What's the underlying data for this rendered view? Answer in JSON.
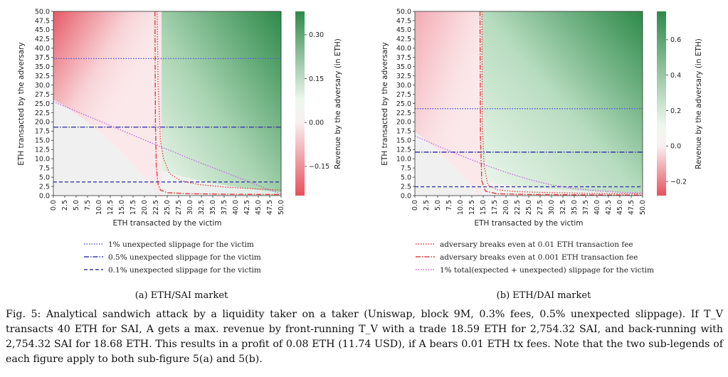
{
  "caption": "Fig. 5: Analytical sandwich attack by a liquidity taker on a taker (Uniswap, block 9M, 0.3% fees, 0.5% unexpected slippage). If T_V transacts 40 ETH for SAI, A gets a max. revenue by front-running T_V with a trade 18.59 ETH for 2,754.32 SAI, and back-running with 2,754.32 SAI for 18.68 ETH. This results in a profit of 0.08 ETH (11.74 USD), if A bears 0.01 ETH tx fees. Note that the two sub-legends of each figure apply to both sub-figure 5(a) and 5(b).",
  "legend_a": [
    {
      "label": "1% unexpected slippage for the victim",
      "color": "#5a5ad8",
      "dash": "dotted"
    },
    {
      "label": "0.5% unexpected slippage for the victim",
      "color": "#3a3aa8",
      "dash": "dashdot"
    },
    {
      "label": "0.1% unexpected slippage for the victim",
      "color": "#3a3aa8",
      "dash": "dashed"
    }
  ],
  "legend_b": [
    {
      "label": "adversary breaks even at 0.01 ETH transaction fee",
      "color": "#e04040",
      "dash": "dotted"
    },
    {
      "label": "adversary breaks even at 0.001 ETH transaction fee",
      "color": "#e04040",
      "dash": "dashdot"
    },
    {
      "label": "1% total(expected + unexpected) slippage for the victim",
      "color": "#c060e0",
      "dash": "dotted"
    }
  ],
  "chart_data": [
    {
      "type": "heatmap",
      "title": "(a) ETH/SAI market",
      "xlabel": "ETH transacted by the victim",
      "ylabel": "ETH transacted by the adversary",
      "colorbar_label": "Revenue by the adversary (in ETH)",
      "xlim": [
        0,
        50
      ],
      "ylim": [
        0,
        50
      ],
      "xticks": [
        0,
        2.5,
        5,
        7.5,
        10,
        12.5,
        15,
        17.5,
        20,
        22.5,
        25,
        27.5,
        30,
        32.5,
        35,
        37.5,
        40,
        42.5,
        45,
        47.5,
        50
      ],
      "xtick_labels": [
        "0.0",
        "2.5",
        "5.0",
        "7.5",
        "10.0",
        "12.5",
        "15.0",
        "17.5",
        "20.0",
        "22.5",
        "25.0",
        "27.5",
        "30.0",
        "32.5",
        "35.0",
        "37.5",
        "40.0",
        "42.5",
        "45.0",
        "47.5",
        "50.0"
      ],
      "yticks": [
        0,
        2.5,
        5,
        7.5,
        10,
        12.5,
        15,
        17.5,
        20,
        22.5,
        25,
        27.5,
        30,
        32.5,
        35,
        37.5,
        40,
        42.5,
        45,
        47.5,
        50
      ],
      "ytick_labels": [
        "0.0",
        "2.5",
        "5.0",
        "7.5",
        "10.0",
        "12.5",
        "15.0",
        "17.5",
        "20.0",
        "22.5",
        "25.0",
        "27.5",
        "30.0",
        "32.5",
        "35.0",
        "37.5",
        "40.0",
        "42.5",
        "45.0",
        "47.5",
        "50.0"
      ],
      "colorbar_range": [
        -0.25,
        0.38
      ],
      "colorbar_ticks": [
        -0.15,
        0.0,
        0.15,
        0.3
      ],
      "colorbar_tick_labels": [
        "−0.15",
        "0.00",
        "0.15",
        "0.30"
      ],
      "hlines": [
        {
          "y": 37.2,
          "style": "dotted",
          "series": "1% unexpected slippage for the victim"
        },
        {
          "y": 18.6,
          "style": "dashdot",
          "series": "0.5% unexpected slippage for the victim"
        },
        {
          "y": 3.7,
          "style": "dashed",
          "series": "0.1% unexpected slippage for the victim"
        }
      ],
      "breakeven_001": {
        "asymptote_x": 22.5,
        "points": [
          [
            22.8,
            50
          ],
          [
            23.0,
            30
          ],
          [
            23.5,
            15
          ],
          [
            24.2,
            10
          ],
          [
            25.5,
            6
          ],
          [
            28,
            4
          ],
          [
            32,
            3
          ],
          [
            38,
            2.3
          ],
          [
            45,
            1.8
          ],
          [
            50,
            1.5
          ]
        ]
      },
      "breakeven_0001": {
        "asymptote_x": 22.3,
        "points": [
          [
            22.3,
            50
          ],
          [
            22.4,
            20
          ],
          [
            22.6,
            8
          ],
          [
            23.0,
            3
          ],
          [
            23.5,
            1.5
          ],
          [
            25,
            0.8
          ],
          [
            30,
            0.5
          ],
          [
            40,
            0.35
          ],
          [
            50,
            0.3
          ]
        ]
      },
      "total_slippage_1pct": {
        "points": [
          [
            0,
            25.5
          ],
          [
            10,
            20.3
          ],
          [
            20,
            15.1
          ],
          [
            30,
            10
          ],
          [
            40,
            5.2
          ],
          [
            48,
            1.3
          ],
          [
            50,
            0.5
          ]
        ]
      }
    },
    {
      "type": "heatmap",
      "title": "(b) ETH/DAI market",
      "xlabel": "ETH transacted by the victim",
      "ylabel": "ETH transacted by the adversary",
      "colorbar_label": "Revenue by the adversary (in ETH)",
      "xlim": [
        0,
        50
      ],
      "ylim": [
        0,
        50
      ],
      "xticks": [
        0,
        2.5,
        5,
        7.5,
        10,
        12.5,
        15,
        17.5,
        20,
        22.5,
        25,
        27.5,
        30,
        32.5,
        35,
        37.5,
        40,
        42.5,
        45,
        47.5,
        50
      ],
      "xtick_labels": [
        "0.0",
        "2.5",
        "5.0",
        "7.5",
        "10.0",
        "12.5",
        "15.0",
        "17.5",
        "20.0",
        "22.5",
        "25.0",
        "27.5",
        "30.0",
        "32.5",
        "35.0",
        "37.5",
        "40.0",
        "42.5",
        "45.0",
        "47.5",
        "50.0"
      ],
      "yticks": [
        0,
        2.5,
        5,
        7.5,
        10,
        12.5,
        15,
        17.5,
        20,
        22.5,
        25,
        27.5,
        30,
        32.5,
        35,
        37.5,
        40,
        42.5,
        45,
        47.5,
        50
      ],
      "ytick_labels": [
        "0.0",
        "2.5",
        "5.0",
        "7.5",
        "10.0",
        "12.5",
        "15.0",
        "17.5",
        "20.0",
        "22.5",
        "25.0",
        "27.5",
        "30.0",
        "32.5",
        "35.0",
        "37.5",
        "40.0",
        "42.5",
        "45.0",
        "47.5",
        "50.0"
      ],
      "colorbar_range": [
        -0.28,
        0.76
      ],
      "colorbar_ticks": [
        -0.2,
        0.0,
        0.2,
        0.4,
        0.6
      ],
      "colorbar_tick_labels": [
        "−0.2",
        "0.0",
        "0.2",
        "0.4",
        "0.6"
      ],
      "hlines": [
        {
          "y": 23.6,
          "style": "dotted",
          "series": "1% unexpected slippage for the victim"
        },
        {
          "y": 11.8,
          "style": "dashdot",
          "series": "0.5% unexpected slippage for the victim"
        },
        {
          "y": 2.4,
          "style": "dashed",
          "series": "0.1% unexpected slippage for the victim"
        }
      ],
      "breakeven_001": {
        "asymptote_x": 14.6,
        "points": [
          [
            14.7,
            50
          ],
          [
            14.8,
            20
          ],
          [
            15.2,
            8
          ],
          [
            16,
            3
          ],
          [
            18,
            1.6
          ],
          [
            22,
            1.1
          ],
          [
            30,
            0.8
          ],
          [
            40,
            0.6
          ],
          [
            50,
            0.5
          ]
        ]
      },
      "breakeven_0001": {
        "asymptote_x": 14.3,
        "points": [
          [
            14.3,
            50
          ],
          [
            14.4,
            15
          ],
          [
            14.7,
            4
          ],
          [
            15.5,
            1.2
          ],
          [
            18,
            0.5
          ],
          [
            25,
            0.3
          ],
          [
            40,
            0.2
          ],
          [
            50,
            0.15
          ]
        ]
      },
      "total_slippage_1pct": {
        "points": [
          [
            0,
            16.2
          ],
          [
            5,
            13.5
          ],
          [
            10,
            10.9
          ],
          [
            15,
            8.5
          ],
          [
            20,
            6.3
          ],
          [
            25,
            4.4
          ],
          [
            30,
            2.9
          ],
          [
            35,
            1.9
          ],
          [
            40,
            1.3
          ],
          [
            45,
            0.9
          ],
          [
            50,
            0.7
          ]
        ]
      }
    }
  ]
}
